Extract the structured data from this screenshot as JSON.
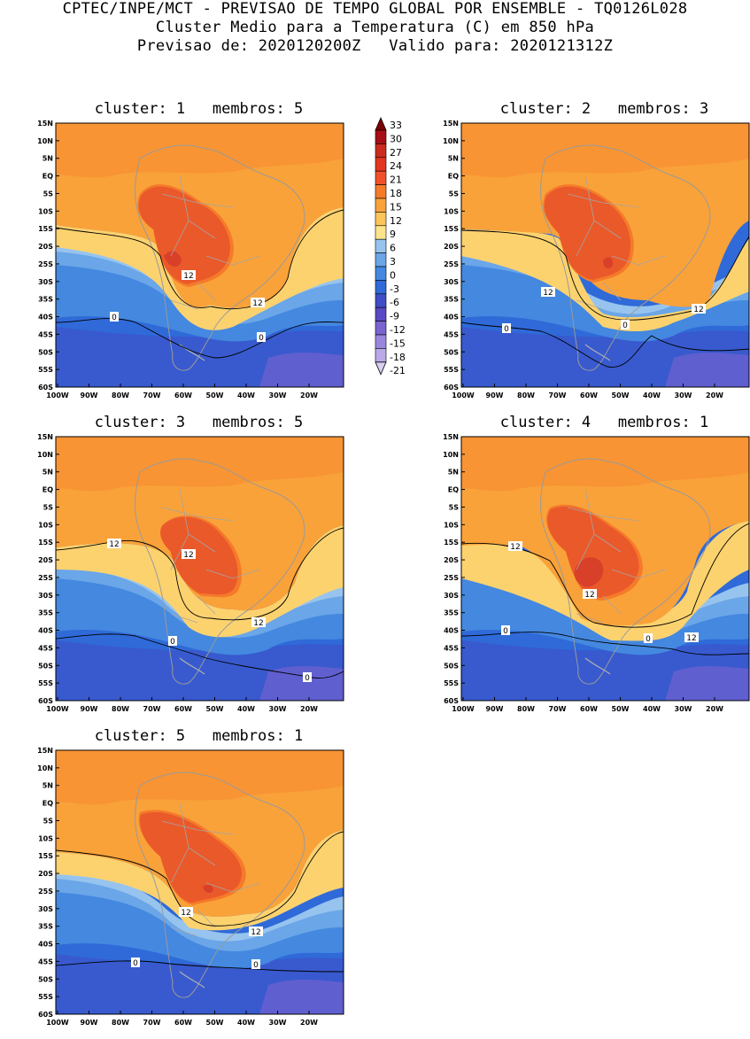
{
  "header": {
    "line1": "CPTEC/INPE/MCT - PREVISAO DE TEMPO GLOBAL POR ENSEMBLE - TQ0126L028",
    "line2": "Cluster Medio para a Temperatura (C) em 850 hPa",
    "line3": "Previsao de: 2020120200Z   Valido para: 2020121312Z"
  },
  "axes": {
    "lat_labels": [
      "15N",
      "10N",
      "5N",
      "EQ",
      "5S",
      "10S",
      "15S",
      "20S",
      "25S",
      "30S",
      "35S",
      "40S",
      "45S",
      "50S",
      "55S",
      "60S"
    ],
    "lon_labels": [
      "100W",
      "90W",
      "80W",
      "70W",
      "60W",
      "50W",
      "40W",
      "30W",
      "20W"
    ]
  },
  "colorbar": {
    "levels": [
      "33",
      "30",
      "27",
      "24",
      "21",
      "18",
      "15",
      "12",
      "9",
      "6",
      "3",
      "0",
      "-3",
      "-6",
      "-9",
      "-12",
      "-15",
      "-18",
      "-21"
    ],
    "colors": [
      "#7d0000",
      "#a50f15",
      "#cb2a1f",
      "#e3351f",
      "#f0512a",
      "#f57a2a",
      "#f9a23a",
      "#fbc55a",
      "#fde38a",
      "#97c4ee",
      "#6aa6e8",
      "#4488e0",
      "#2f6ad8",
      "#3f4dc7",
      "#5a49c4",
      "#7b63d0",
      "#9a86dc",
      "#baa9e6",
      "#d8cef0"
    ]
  },
  "panels": [
    {
      "title": "cluster: 1   membros: 5",
      "contour_labels": [
        "12",
        "12",
        "0",
        "0"
      ]
    },
    {
      "title": "cluster: 2   membros: 3",
      "contour_labels": [
        "12",
        "12",
        "0",
        "0"
      ]
    },
    {
      "title": "cluster: 3   membros: 5",
      "contour_labels": [
        "12",
        "12",
        "12",
        "0",
        "0"
      ]
    },
    {
      "title": "cluster: 4   membros: 1",
      "contour_labels": [
        "12",
        "12",
        "12",
        "0",
        "0"
      ]
    },
    {
      "title": "cluster: 5   membros: 1",
      "contour_labels": [
        "12",
        "12",
        "0",
        "0"
      ]
    }
  ]
}
